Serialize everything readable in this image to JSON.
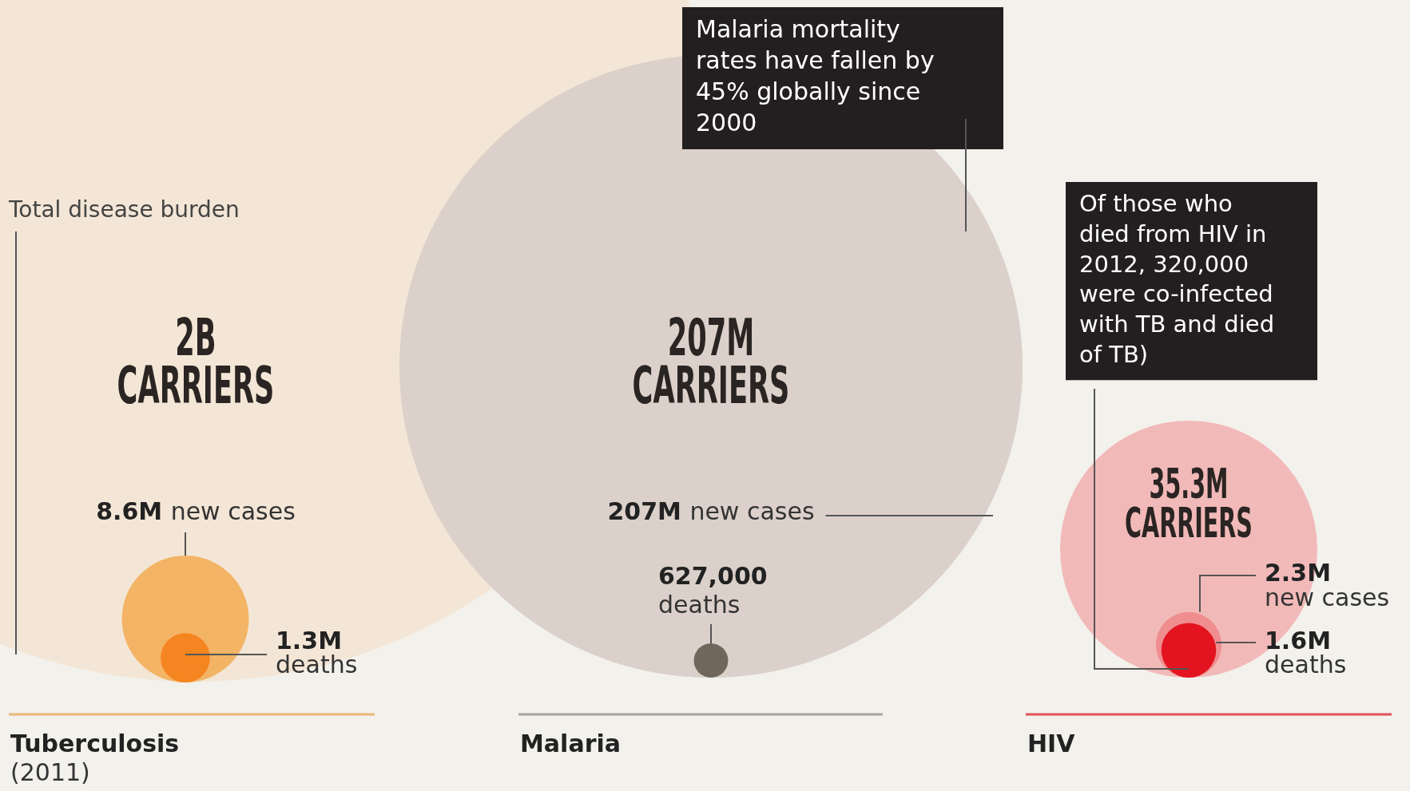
{
  "chart_data": {
    "type": "other",
    "categories": [
      "Tuberculosis",
      "Malaria",
      "HIV"
    ],
    "series": [
      {
        "name": "CARRIERS",
        "colors": [
          "#f3e6d6",
          "#dbd1ca",
          "#f2b9b9"
        ],
        "values": [
          2000000000,
          207000000,
          35300000
        ],
        "value_labels": [
          "2B",
          "207M",
          "35.3M"
        ]
      },
      {
        "name": "new cases",
        "colors": [
          "#f3b466",
          "#dbd1ca",
          "#ef8d8f"
        ],
        "values": [
          8600000,
          207000000,
          2300000
        ],
        "value_labels": [
          "8.6M",
          "207M",
          "2.3M"
        ]
      },
      {
        "name": "deaths",
        "colors": [
          "#f58520",
          "#6f665c",
          "#e3141f"
        ],
        "values": [
          1300000,
          627000,
          1600000
        ],
        "value_labels": [
          "1.3M",
          "627,000",
          "1.6M"
        ]
      }
    ],
    "annotations": [
      "Total disease burden",
      "Malaria mortality rates have fallen by 45% globally since 2000",
      "Of those who died from HIV in 2012, 320,000 were co-infected with TB and died of TB)",
      "(2011)"
    ]
  }
}
